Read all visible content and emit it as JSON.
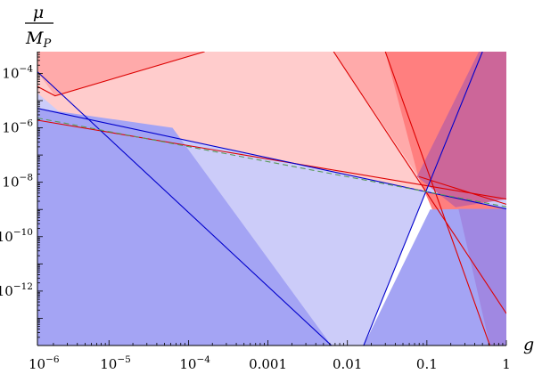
{
  "chart_data": {
    "type": "area",
    "title": "",
    "xlabel": "g",
    "ylabel": {
      "numerator": "μ",
      "denominator": "M",
      "denominator_sub": "P"
    },
    "x_scale": "log",
    "y_scale": "log",
    "xlim": [
      1.259e-06,
      1
    ],
    "ylim": [
      1e-14,
      0.00063
    ],
    "x_ticks": [
      {
        "value": 1e-06,
        "base": "10",
        "exp": "−6"
      },
      {
        "value": 1e-05,
        "base": "10",
        "exp": "−5"
      },
      {
        "value": 0.0001,
        "base": "10",
        "exp": "−4"
      },
      {
        "value": 0.001,
        "label": "0.001"
      },
      {
        "value": 0.01,
        "label": "0.01"
      },
      {
        "value": 0.1,
        "label": "0.1"
      },
      {
        "value": 1,
        "label": "1"
      }
    ],
    "y_ticks": [
      {
        "value": 0.0001,
        "base": "10",
        "exp": "−4"
      },
      {
        "value": 1e-06,
        "base": "10",
        "exp": "−6"
      },
      {
        "value": 1e-08,
        "base": "10",
        "exp": "−8"
      },
      {
        "value": 1e-10,
        "base": "10",
        "exp": "−10"
      },
      {
        "value": 1e-12,
        "base": "10",
        "exp": "−12"
      }
    ],
    "grid": false,
    "legend": "none",
    "colors": {
      "red_line": "#dd0000",
      "blue_line": "#0000cc",
      "dashed_line": "#5a9a5a",
      "red_pale": "#ffcccc",
      "red_medium": "#ffaaaa",
      "red_dark": "#ff7f7f",
      "blue_pale": "#ccccf9",
      "blue_medium": "#a4a4f4",
      "overlap": "#cc6699",
      "overlap_low": "#a088e2"
    },
    "regions": [
      {
        "fill": "red_pale",
        "points": [
          [
            1.259e-06,
            1.9e-06
          ],
          [
            0.078,
            4.2e-09
          ],
          [
            1,
            2.4e-09
          ],
          [
            1,
            0.00063
          ],
          [
            1.259e-06,
            0.00063
          ]
        ]
      },
      {
        "fill": "red_medium",
        "points": [
          [
            1.259e-06,
            0.000115
          ],
          [
            2.1e-06,
            1.5e-05
          ],
          [
            0.00016,
            0.00063
          ],
          [
            1.259e-06,
            0.00063
          ]
        ]
      },
      {
        "fill": "red_medium",
        "points": [
          [
            0.0067,
            0.00063
          ],
          [
            0.078,
            1.6e-08
          ],
          [
            1,
            1.5e-13
          ],
          [
            1,
            0.00063
          ]
        ]
      },
      {
        "fill": "red_dark",
        "points": [
          [
            0.03,
            0.00063
          ],
          [
            0.078,
            1.6e-08
          ],
          [
            0.62,
            1e-14
          ],
          [
            1,
            1e-14
          ],
          [
            1,
            0.00063
          ]
        ]
      },
      {
        "fill": "blue_pale",
        "points": [
          [
            1.259e-06,
            1.9e-05
          ],
          [
            0.0063,
            1e-14
          ],
          [
            0.016,
            1e-14
          ],
          [
            0.5,
            0.00063
          ],
          [
            1,
            0.00063
          ],
          [
            1,
            1.05e-09
          ],
          [
            1.259e-06,
            5.2e-06
          ]
        ]
      },
      {
        "fill": "blue_medium",
        "points": [
          [
            1.259e-06,
            1e-14
          ],
          [
            1.259e-06,
            5.2e-06
          ],
          [
            6.3e-05,
            1e-06
          ],
          [
            0.0063,
            1e-14
          ]
        ]
      },
      {
        "fill": "blue_medium",
        "points": [
          [
            0.016,
            1e-14
          ],
          [
            0.11,
            1e-09
          ],
          [
            1,
            1.05e-09
          ],
          [
            1,
            1e-14
          ]
        ]
      },
      {
        "fill": "overlap",
        "points": [
          [
            0.075,
            1.6e-08
          ],
          [
            0.45,
            0.00063
          ],
          [
            1,
            0.00063
          ],
          [
            1,
            2.4e-09
          ],
          [
            0.23,
            1.2e-09
          ]
        ]
      },
      {
        "fill": "overlap_low",
        "points": [
          [
            0.25,
            1.05e-09
          ],
          [
            1,
            1.05e-09
          ],
          [
            1,
            1e-14
          ],
          [
            0.62,
            1e-14
          ]
        ]
      }
    ],
    "lines": [
      {
        "color": "red_line",
        "points": [
          [
            1.259e-06,
            1.9e-06
          ],
          [
            1,
            2.4e-09
          ]
        ]
      },
      {
        "color": "red_line",
        "points": [
          [
            1.259e-06,
            3.3e-05
          ],
          [
            2.1e-06,
            1.5e-05
          ],
          [
            0.00016,
            0.00063
          ]
        ]
      },
      {
        "color": "red_line",
        "points": [
          [
            0.0067,
            0.00063
          ],
          [
            1,
            1.5e-13
          ]
        ]
      },
      {
        "color": "red_line",
        "points": [
          [
            0.03,
            0.00063
          ],
          [
            0.62,
            1e-14
          ]
        ]
      },
      {
        "color": "red_line",
        "points": [
          [
            0.08,
            1.6e-08
          ],
          [
            1,
            1.55e-09
          ]
        ]
      },
      {
        "color": "blue_line",
        "points": [
          [
            1.259e-06,
            5.2e-06
          ],
          [
            1,
            1.05e-09
          ]
        ]
      },
      {
        "color": "blue_line",
        "points": [
          [
            1.259e-06,
            0.000115
          ],
          [
            0.0063,
            1e-14
          ]
        ]
      },
      {
        "color": "blue_line",
        "points": [
          [
            0.016,
            1e-14
          ],
          [
            0.5,
            0.00063
          ]
        ]
      }
    ],
    "dashed_line": {
      "color": "dashed_line",
      "points": [
        [
          1.259e-06,
          2.3e-06
        ],
        [
          1,
          1.25e-09
        ]
      ]
    }
  }
}
